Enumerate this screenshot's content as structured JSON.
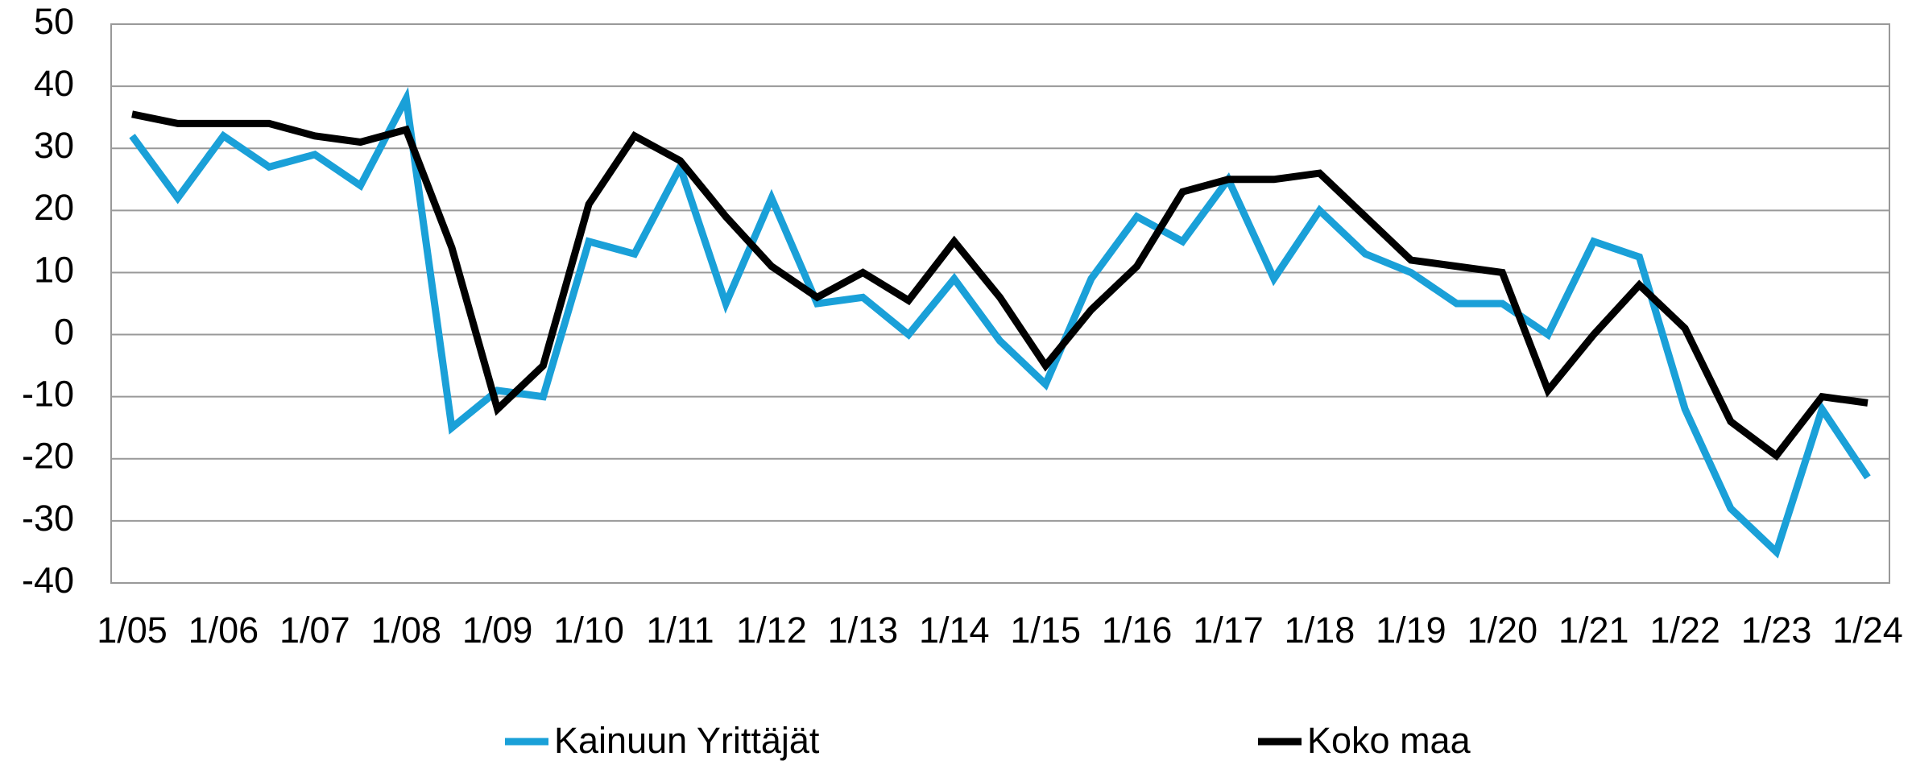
{
  "chart_data": {
    "type": "line",
    "categories": [
      "1/05",
      null,
      "1/06",
      null,
      "1/07",
      null,
      "1/08",
      null,
      "1/09",
      null,
      "1/10",
      null,
      "1/11",
      null,
      "1/12",
      null,
      "1/13",
      null,
      "1/14",
      null,
      "1/15",
      null,
      "1/16",
      null,
      "1/17",
      null,
      "1/18",
      null,
      "1/19",
      null,
      "1/20",
      null,
      "1/21",
      null,
      "1/22",
      null,
      "1/23",
      null,
      "1/24"
    ],
    "series": [
      {
        "name": "Kainuun Yrittäjät",
        "color": "#1aa0d8",
        "values": [
          32,
          22,
          32,
          27,
          29,
          24,
          38,
          -15,
          -9,
          -10,
          15,
          13,
          27,
          5,
          22,
          5,
          6,
          0,
          9,
          -1,
          -8,
          9,
          19,
          15,
          25,
          9,
          20,
          13,
          10,
          5,
          5,
          0,
          15,
          12.5,
          -12,
          -28,
          -35,
          -12,
          -23
        ]
      },
      {
        "name": "Koko maa",
        "color": "#000000",
        "values": [
          35.5,
          34,
          34,
          34,
          32,
          31,
          33,
          14,
          -12,
          -5,
          21,
          32,
          28,
          19,
          11,
          6,
          10,
          5.5,
          15,
          6,
          -5,
          4,
          11,
          23,
          25,
          25,
          26,
          19,
          12,
          11,
          10,
          -9,
          0,
          8,
          1,
          -14,
          -19.5,
          -10,
          -11
        ]
      }
    ],
    "ylim": [
      -40,
      50
    ],
    "yticks": [
      -40,
      -30,
      -20,
      -10,
      0,
      10,
      20,
      30,
      40,
      50
    ],
    "grid": true,
    "legend": "bottom"
  }
}
